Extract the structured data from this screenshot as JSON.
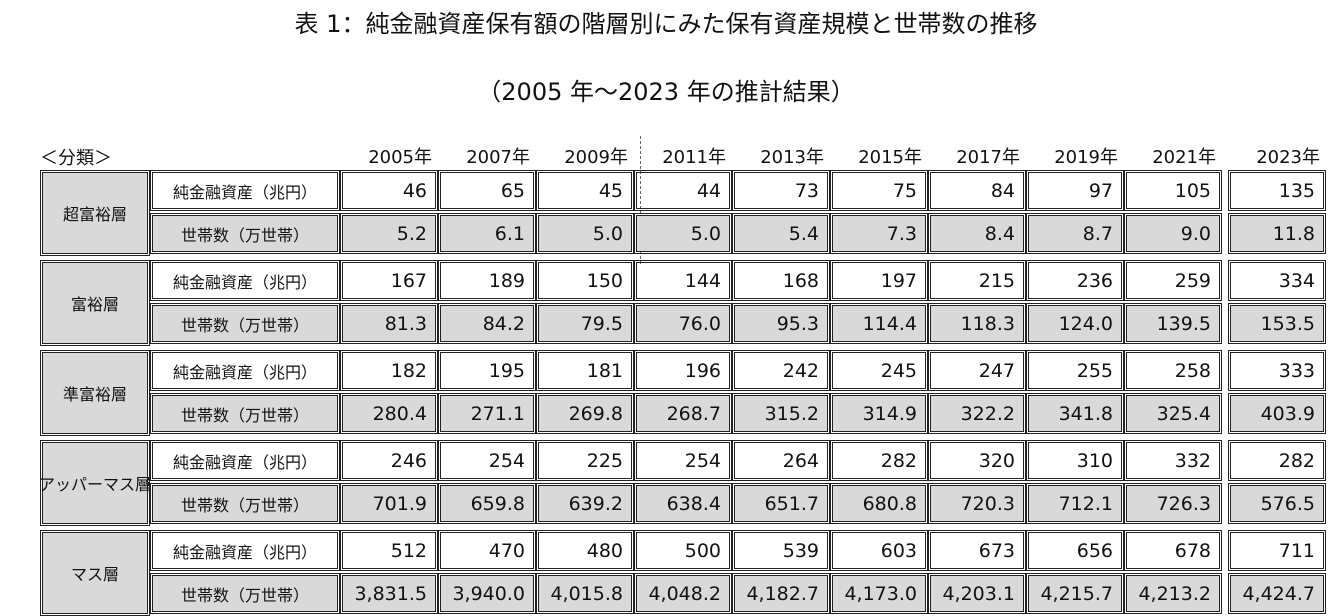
{
  "title": "表 1：純金融資産保有額の階層別にみた保有資産規模と世帯数の推移",
  "subtitle": "（2005 年～2023 年の推計結果）",
  "header": {
    "label": "＜分類＞",
    "years": [
      "2005年",
      "2007年",
      "2009年",
      "2011年",
      "2013年",
      "2015年",
      "2017年",
      "2019年",
      "2021年",
      "2023年"
    ]
  },
  "groups": [
    {
      "name": "超富裕層",
      "rows": [
        {
          "label": "純金融資産（兆円）",
          "values": [
            "46",
            "65",
            "45",
            "44",
            "73",
            "75",
            "84",
            "97",
            "105",
            "135"
          ]
        },
        {
          "label": "世帯数（万世帯）",
          "values": [
            "5.2",
            "6.1",
            "5.0",
            "5.0",
            "5.4",
            "7.3",
            "8.4",
            "8.7",
            "9.0",
            "11.8"
          ]
        }
      ]
    },
    {
      "name": "富裕層",
      "rows": [
        {
          "label": "純金融資産（兆円）",
          "values": [
            "167",
            "189",
            "150",
            "144",
            "168",
            "197",
            "215",
            "236",
            "259",
            "334"
          ]
        },
        {
          "label": "世帯数（万世帯）",
          "values": [
            "81.3",
            "84.2",
            "79.5",
            "76.0",
            "95.3",
            "114.4",
            "118.3",
            "124.0",
            "139.5",
            "153.5"
          ]
        }
      ]
    },
    {
      "name": "準富裕層",
      "rows": [
        {
          "label": "純金融資産（兆円）",
          "values": [
            "182",
            "195",
            "181",
            "196",
            "242",
            "245",
            "247",
            "255",
            "258",
            "333"
          ]
        },
        {
          "label": "世帯数（万世帯）",
          "values": [
            "280.4",
            "271.1",
            "269.8",
            "268.7",
            "315.2",
            "314.9",
            "322.2",
            "341.8",
            "325.4",
            "403.9"
          ]
        }
      ]
    },
    {
      "name": "アッパーマス層",
      "rows": [
        {
          "label": "純金融資産（兆円）",
          "values": [
            "246",
            "254",
            "225",
            "254",
            "264",
            "282",
            "320",
            "310",
            "332",
            "282"
          ]
        },
        {
          "label": "世帯数（万世帯）",
          "values": [
            "701.9",
            "659.8",
            "639.2",
            "638.4",
            "651.7",
            "680.8",
            "720.3",
            "712.1",
            "726.3",
            "576.5"
          ]
        }
      ]
    },
    {
      "name": "マス層",
      "rows": [
        {
          "label": "純金融資産（兆円）",
          "values": [
            "512",
            "470",
            "480",
            "500",
            "539",
            "603",
            "673",
            "656",
            "678",
            "711"
          ]
        },
        {
          "label": "世帯数（万世帯）",
          "values": [
            "3,831.5",
            "3,940.0",
            "4,015.8",
            "4,048.2",
            "4,182.7",
            "4,173.0",
            "4,203.1",
            "4,215.7",
            "4,213.2",
            "4,424.7"
          ]
        }
      ]
    }
  ]
}
